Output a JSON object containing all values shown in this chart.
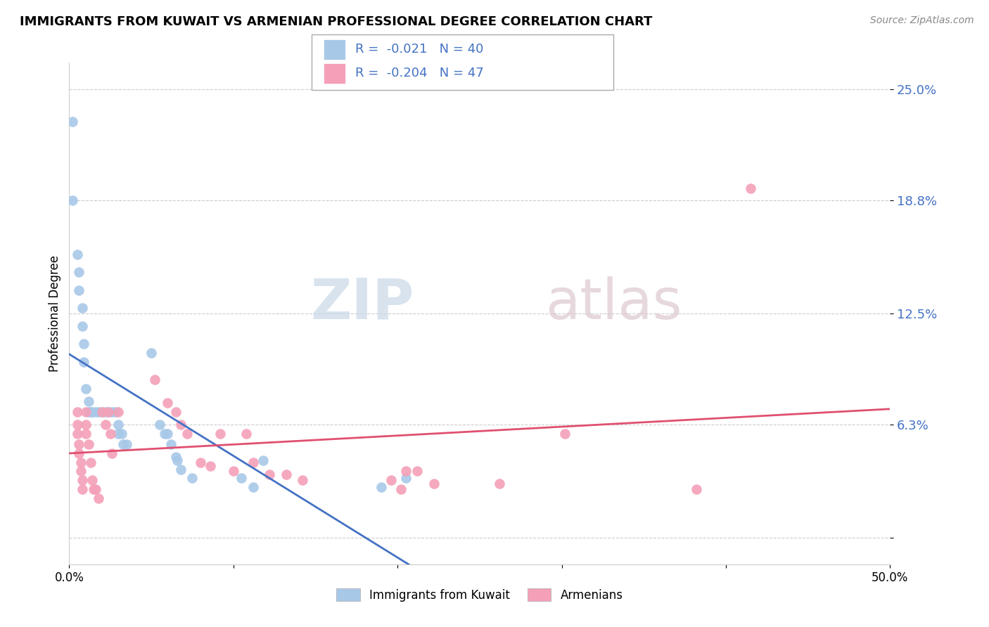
{
  "title": "IMMIGRANTS FROM KUWAIT VS ARMENIAN PROFESSIONAL DEGREE CORRELATION CHART",
  "source": "Source: ZipAtlas.com",
  "ylabel": "Professional Degree",
  "x_min": 0.0,
  "x_max": 0.5,
  "y_min": -0.015,
  "y_max": 0.265,
  "y_ticks": [
    0.0,
    0.063,
    0.125,
    0.188,
    0.25
  ],
  "y_tick_labels": [
    "",
    "6.3%",
    "12.5%",
    "18.8%",
    "25.0%"
  ],
  "x_tick_labels": [
    "0.0%",
    "",
    "",
    "",
    "",
    "50.0%"
  ],
  "legend_label1": "Immigrants from Kuwait",
  "legend_label2": "Armenians",
  "r1": "-0.021",
  "n1": "40",
  "r2": "-0.204",
  "n2": "47",
  "blue_color": "#a8c8e8",
  "pink_color": "#f4a0b8",
  "blue_line_color": "#4472c4",
  "pink_line_color": "#e05070",
  "grid_color": "#cccccc",
  "blue_scatter": [
    [
      0.002,
      0.232
    ],
    [
      0.002,
      0.188
    ],
    [
      0.005,
      0.158
    ],
    [
      0.006,
      0.148
    ],
    [
      0.006,
      0.138
    ],
    [
      0.008,
      0.128
    ],
    [
      0.008,
      0.118
    ],
    [
      0.009,
      0.108
    ],
    [
      0.009,
      0.098
    ],
    [
      0.01,
      0.083
    ],
    [
      0.012,
      0.076
    ],
    [
      0.012,
      0.07
    ],
    [
      0.013,
      0.07
    ],
    [
      0.014,
      0.07
    ],
    [
      0.016,
      0.07
    ],
    [
      0.018,
      0.07
    ],
    [
      0.02,
      0.07
    ],
    [
      0.022,
      0.07
    ],
    [
      0.024,
      0.07
    ],
    [
      0.026,
      0.07
    ],
    [
      0.028,
      0.07
    ],
    [
      0.03,
      0.063
    ],
    [
      0.03,
      0.058
    ],
    [
      0.032,
      0.058
    ],
    [
      0.033,
      0.052
    ],
    [
      0.035,
      0.052
    ],
    [
      0.05,
      0.103
    ],
    [
      0.055,
      0.063
    ],
    [
      0.058,
      0.058
    ],
    [
      0.06,
      0.058
    ],
    [
      0.062,
      0.052
    ],
    [
      0.065,
      0.045
    ],
    [
      0.066,
      0.043
    ],
    [
      0.068,
      0.038
    ],
    [
      0.075,
      0.033
    ],
    [
      0.105,
      0.033
    ],
    [
      0.112,
      0.028
    ],
    [
      0.118,
      0.043
    ],
    [
      0.19,
      0.028
    ],
    [
      0.205,
      0.033
    ]
  ],
  "pink_scatter": [
    [
      0.005,
      0.07
    ],
    [
      0.005,
      0.063
    ],
    [
      0.005,
      0.058
    ],
    [
      0.006,
      0.052
    ],
    [
      0.006,
      0.047
    ],
    [
      0.007,
      0.042
    ],
    [
      0.007,
      0.037
    ],
    [
      0.008,
      0.032
    ],
    [
      0.008,
      0.027
    ],
    [
      0.01,
      0.07
    ],
    [
      0.01,
      0.063
    ],
    [
      0.01,
      0.058
    ],
    [
      0.012,
      0.052
    ],
    [
      0.013,
      0.042
    ],
    [
      0.014,
      0.032
    ],
    [
      0.015,
      0.027
    ],
    [
      0.016,
      0.027
    ],
    [
      0.018,
      0.022
    ],
    [
      0.02,
      0.07
    ],
    [
      0.022,
      0.063
    ],
    [
      0.024,
      0.07
    ],
    [
      0.025,
      0.058
    ],
    [
      0.026,
      0.047
    ],
    [
      0.03,
      0.07
    ],
    [
      0.052,
      0.088
    ],
    [
      0.06,
      0.075
    ],
    [
      0.065,
      0.07
    ],
    [
      0.068,
      0.063
    ],
    [
      0.072,
      0.058
    ],
    [
      0.08,
      0.042
    ],
    [
      0.086,
      0.04
    ],
    [
      0.092,
      0.058
    ],
    [
      0.1,
      0.037
    ],
    [
      0.108,
      0.058
    ],
    [
      0.112,
      0.042
    ],
    [
      0.122,
      0.035
    ],
    [
      0.132,
      0.035
    ],
    [
      0.142,
      0.032
    ],
    [
      0.196,
      0.032
    ],
    [
      0.202,
      0.027
    ],
    [
      0.205,
      0.037
    ],
    [
      0.212,
      0.037
    ],
    [
      0.222,
      0.03
    ],
    [
      0.262,
      0.03
    ],
    [
      0.302,
      0.058
    ],
    [
      0.382,
      0.027
    ],
    [
      0.415,
      0.195
    ]
  ]
}
